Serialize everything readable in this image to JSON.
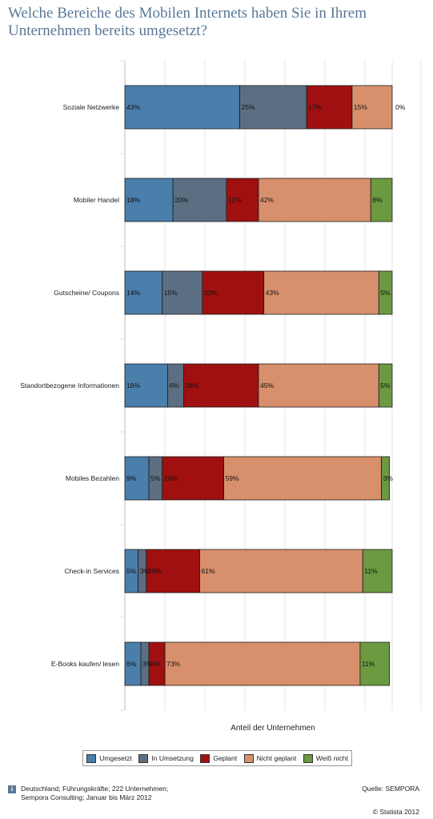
{
  "title": "Welche Bereiche des Mobilen Internets haben Sie in Ihrem Unternehmen bereits umgesetzt?",
  "footer": {
    "info_line1": "Deutschland; Führungskräfte; 222 Unternehmen;",
    "info_line2": "Sempora Consulting; Januar bis März 2012",
    "source": "Quelle: SEMPORA",
    "copyright": "© Statista 2012",
    "info_icon": "i"
  },
  "chart_data": {
    "type": "bar",
    "orientation": "horizontal",
    "stacked": true,
    "xlabel": "Anteil der Unternehmen",
    "ylabel": "",
    "grid": true,
    "legend_position": "bottom",
    "categories": [
      "Soziale Netzwerke",
      "Mobiler Handel",
      "Gutscheine/ Coupons",
      "Standortbezogene Informationen",
      "Mobiles Bezahlen",
      "Check-in Services",
      "E-Books kaufen/ lesen"
    ],
    "series": [
      {
        "name": "Umgesetzt",
        "color": "#4a7eab",
        "values": [
          43,
          18,
          14,
          16,
          9,
          5,
          6
        ],
        "labels": [
          "43%",
          "18%",
          "14%",
          "16%",
          "9%",
          "5%",
          "6%"
        ]
      },
      {
        "name": "In Umsetzung",
        "color": "#5c6f82",
        "values": [
          25,
          20,
          15,
          6,
          5,
          3,
          3
        ],
        "labels": [
          "25%",
          "20%",
          "15%",
          "6%",
          "5%",
          "3%",
          "3%"
        ]
      },
      {
        "name": "Geplant",
        "color": "#a01010",
        "values": [
          17,
          12,
          23,
          28,
          23,
          20,
          6
        ],
        "labels": [
          "17%",
          "12%",
          "23%",
          "28%",
          "23%",
          "20%",
          "6%"
        ]
      },
      {
        "name": "Nicht geplant",
        "color": "#d88f6c",
        "values": [
          15,
          42,
          43,
          45,
          59,
          61,
          73
        ],
        "labels": [
          "15%",
          "42%",
          "43%",
          "45%",
          "59%",
          "61%",
          "73%"
        ]
      },
      {
        "name": "Weiß nicht",
        "color": "#6b9a40",
        "values": [
          0,
          8,
          5,
          5,
          3,
          11,
          11
        ],
        "labels": [
          "0%",
          "8%",
          "5%",
          "5%",
          "3%",
          "11%",
          "11%"
        ]
      }
    ]
  }
}
